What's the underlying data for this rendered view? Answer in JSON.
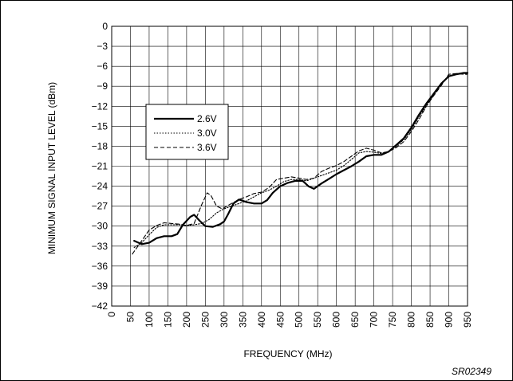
{
  "chart_data": {
    "type": "line",
    "xlabel": "FREQUENCY (MHz)",
    "ylabel": "MINIMUM SIGNAL INPUT LEVEL (dBm)",
    "xlim": [
      0,
      950
    ],
    "ylim": [
      -42,
      0
    ],
    "x_ticks": [
      "0",
      "50",
      "100",
      "150",
      "200",
      "250",
      "300",
      "350",
      "400",
      "450",
      "500",
      "550",
      "600",
      "650",
      "700",
      "750",
      "800",
      "850",
      "900",
      "950"
    ],
    "y_ticks": [
      "0",
      "−3",
      "−6",
      "−9",
      "−12",
      "−15",
      "−18",
      "−21",
      "−24",
      "−27",
      "−30",
      "−33",
      "−36",
      "−39",
      "−42"
    ],
    "grid": true,
    "legend_position": "left",
    "series": [
      {
        "name": "2.6V",
        "style": "solid",
        "points": [
          [
            60,
            -32.2
          ],
          [
            80,
            -32.7
          ],
          [
            100,
            -32.5
          ],
          [
            120,
            -31.8
          ],
          [
            140,
            -31.5
          ],
          [
            160,
            -31.5
          ],
          [
            175,
            -31.2
          ],
          [
            190,
            -29.8
          ],
          [
            210,
            -28.6
          ],
          [
            220,
            -28.3
          ],
          [
            235,
            -29.2
          ],
          [
            250,
            -30.0
          ],
          [
            270,
            -30.1
          ],
          [
            290,
            -29.7
          ],
          [
            300,
            -29.3
          ],
          [
            310,
            -28.3
          ],
          [
            325,
            -26.6
          ],
          [
            340,
            -26.0
          ],
          [
            360,
            -26.4
          ],
          [
            380,
            -26.6
          ],
          [
            400,
            -26.6
          ],
          [
            415,
            -26.1
          ],
          [
            430,
            -25.0
          ],
          [
            450,
            -24.0
          ],
          [
            470,
            -23.5
          ],
          [
            490,
            -23.2
          ],
          [
            510,
            -23.2
          ],
          [
            525,
            -24.0
          ],
          [
            540,
            -24.4
          ],
          [
            560,
            -23.6
          ],
          [
            580,
            -22.9
          ],
          [
            600,
            -22.2
          ],
          [
            620,
            -21.6
          ],
          [
            640,
            -21.0
          ],
          [
            660,
            -20.3
          ],
          [
            680,
            -19.5
          ],
          [
            700,
            -19.3
          ],
          [
            720,
            -19.3
          ],
          [
            740,
            -18.8
          ],
          [
            760,
            -17.8
          ],
          [
            780,
            -16.8
          ],
          [
            800,
            -15.2
          ],
          [
            820,
            -13.3
          ],
          [
            840,
            -11.6
          ],
          [
            860,
            -10.1
          ],
          [
            880,
            -8.6
          ],
          [
            900,
            -7.5
          ],
          [
            920,
            -7.2
          ],
          [
            940,
            -7.0
          ],
          [
            950,
            -7.0
          ]
        ]
      },
      {
        "name": "3.0V",
        "style": "dotted",
        "points": [
          [
            60,
            -33.2
          ],
          [
            80,
            -32.5
          ],
          [
            100,
            -31.3
          ],
          [
            120,
            -30.2
          ],
          [
            140,
            -29.8
          ],
          [
            160,
            -29.8
          ],
          [
            180,
            -29.8
          ],
          [
            200,
            -29.9
          ],
          [
            220,
            -29.8
          ],
          [
            240,
            -29.6
          ],
          [
            260,
            -29.0
          ],
          [
            280,
            -28.0
          ],
          [
            300,
            -27.4
          ],
          [
            320,
            -27.0
          ],
          [
            340,
            -26.6
          ],
          [
            360,
            -26.2
          ],
          [
            380,
            -25.6
          ],
          [
            400,
            -25.0
          ],
          [
            420,
            -24.6
          ],
          [
            440,
            -24.0
          ],
          [
            460,
            -23.3
          ],
          [
            480,
            -23.0
          ],
          [
            500,
            -23.0
          ],
          [
            520,
            -23.2
          ],
          [
            540,
            -22.8
          ],
          [
            560,
            -22.4
          ],
          [
            580,
            -22.0
          ],
          [
            600,
            -21.6
          ],
          [
            620,
            -20.9
          ],
          [
            640,
            -20.0
          ],
          [
            660,
            -19.0
          ],
          [
            680,
            -18.8
          ],
          [
            700,
            -18.9
          ],
          [
            720,
            -19.1
          ],
          [
            740,
            -18.8
          ],
          [
            760,
            -18.0
          ],
          [
            780,
            -17.0
          ],
          [
            800,
            -15.5
          ],
          [
            820,
            -13.6
          ],
          [
            840,
            -11.9
          ],
          [
            860,
            -10.3
          ],
          [
            880,
            -8.5
          ],
          [
            900,
            -7.5
          ],
          [
            920,
            -7.1
          ],
          [
            940,
            -7.1
          ],
          [
            950,
            -7.1
          ]
        ]
      },
      {
        "name": "3.6V",
        "style": "dashed",
        "points": [
          [
            55,
            -34.2
          ],
          [
            70,
            -33.0
          ],
          [
            85,
            -31.8
          ],
          [
            100,
            -30.6
          ],
          [
            120,
            -29.9
          ],
          [
            140,
            -29.5
          ],
          [
            160,
            -29.6
          ],
          [
            180,
            -29.7
          ],
          [
            200,
            -29.9
          ],
          [
            220,
            -29.6
          ],
          [
            240,
            -26.8
          ],
          [
            255,
            -25.0
          ],
          [
            265,
            -25.4
          ],
          [
            280,
            -27.0
          ],
          [
            295,
            -27.4
          ],
          [
            320,
            -26.6
          ],
          [
            340,
            -26.0
          ],
          [
            360,
            -25.6
          ],
          [
            380,
            -25.1
          ],
          [
            400,
            -24.9
          ],
          [
            420,
            -24.2
          ],
          [
            440,
            -23.0
          ],
          [
            460,
            -22.8
          ],
          [
            480,
            -22.6
          ],
          [
            500,
            -22.8
          ],
          [
            520,
            -23.0
          ],
          [
            540,
            -22.8
          ],
          [
            560,
            -21.8
          ],
          [
            580,
            -21.3
          ],
          [
            600,
            -20.9
          ],
          [
            620,
            -20.3
          ],
          [
            640,
            -19.5
          ],
          [
            660,
            -18.7
          ],
          [
            680,
            -18.3
          ],
          [
            700,
            -18.6
          ],
          [
            720,
            -19.0
          ],
          [
            740,
            -18.8
          ],
          [
            760,
            -18.2
          ],
          [
            780,
            -17.3
          ],
          [
            800,
            -15.8
          ],
          [
            820,
            -14.0
          ],
          [
            840,
            -12.0
          ],
          [
            860,
            -10.4
          ],
          [
            880,
            -8.9
          ],
          [
            900,
            -7.2
          ],
          [
            920,
            -7.1
          ],
          [
            940,
            -7.2
          ],
          [
            950,
            -7.2
          ]
        ]
      }
    ],
    "annotations": [
      "SR02349"
    ]
  }
}
